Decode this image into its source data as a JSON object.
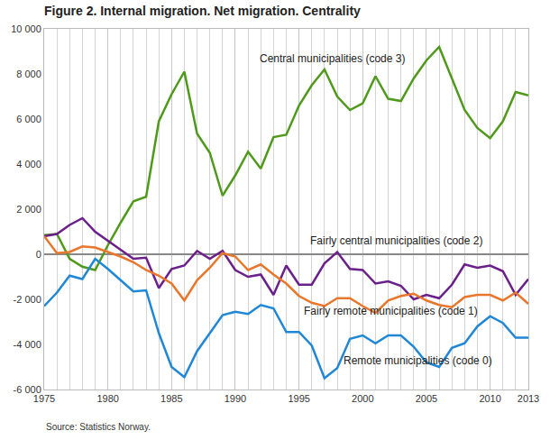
{
  "chart_data": {
    "type": "line",
    "title": "Figure 2. Internal migration. Net migration. Centrality",
    "source": "Source: Statistics Norway.",
    "x": [
      1975,
      1976,
      1977,
      1978,
      1979,
      1980,
      1981,
      1982,
      1983,
      1984,
      1985,
      1986,
      1987,
      1988,
      1989,
      1990,
      1991,
      1992,
      1993,
      1994,
      1995,
      1996,
      1997,
      1998,
      1999,
      2000,
      2001,
      2002,
      2003,
      2004,
      2005,
      2006,
      2007,
      2008,
      2009,
      2010,
      2011,
      2012,
      2013
    ],
    "series": [
      {
        "name": "Central municipalities (code 3)",
        "color": "#4f9a1b",
        "values": [
          850,
          900,
          -200,
          -550,
          -700,
          400,
          1400,
          2350,
          2550,
          5900,
          7100,
          8100,
          5350,
          4500,
          2600,
          3500,
          4550,
          3800,
          5200,
          5300,
          6600,
          7500,
          8200,
          7000,
          6400,
          6700,
          7900,
          6900,
          6800,
          7800,
          8600,
          9200,
          7800,
          6400,
          5600,
          5150,
          5900,
          7200,
          7050
        ]
      },
      {
        "name": "Fairly central municipalities (code 2)",
        "color": "#6a1f8a",
        "values": [
          800,
          900,
          1300,
          1600,
          1000,
          600,
          200,
          -200,
          -150,
          -1500,
          -650,
          -500,
          150,
          -200,
          150,
          -700,
          -1000,
          -900,
          -1800,
          -500,
          -1350,
          -1350,
          -400,
          100,
          -650,
          -700,
          -1300,
          -1200,
          -1400,
          -2000,
          -1800,
          -1950,
          -1350,
          -450,
          -600,
          -500,
          -750,
          -1800,
          -1100
        ]
      },
      {
        "name": "Fairly remote municipalities (code 1)",
        "color": "#e8762b",
        "values": [
          800,
          50,
          100,
          350,
          300,
          100,
          -100,
          -350,
          -700,
          -950,
          -1300,
          -2050,
          -1150,
          -600,
          50,
          -100,
          -700,
          -450,
          -900,
          -1300,
          -1850,
          -2150,
          -2300,
          -1950,
          -1950,
          -2300,
          -2600,
          -2050,
          -1850,
          -1750,
          -2050,
          -2250,
          -2350,
          -1900,
          -1800,
          -1800,
          -2050,
          -1700,
          -2200
        ]
      },
      {
        "name": "Remote municipalities (code 0)",
        "color": "#1f87d6",
        "values": [
          -2300,
          -1700,
          -950,
          -1100,
          -200,
          -650,
          -1150,
          -1650,
          -1600,
          -3500,
          -5000,
          -5450,
          -4300,
          -3500,
          -2700,
          -2550,
          -2650,
          -2250,
          -2400,
          -3450,
          -3450,
          -4050,
          -5500,
          -5050,
          -3750,
          -3600,
          -3950,
          -3600,
          -3600,
          -4100,
          -4800,
          -5000,
          -4150,
          -3950,
          -3200,
          -2750,
          -3050,
          -3700,
          -3700
        ]
      }
    ],
    "annotations": [
      {
        "text": "Central municipalities (code 3)",
        "x": 1997.6,
        "y": 8700
      },
      {
        "text": "Fairly central municipalities (code 2)",
        "x": 2002.6,
        "y": 600
      },
      {
        "text": "Fairly remote municipalities (code 1)",
        "x": 2002.2,
        "y": -2500
      },
      {
        "text": "Remote municipalities (code 0)",
        "x": 2004.3,
        "y": -4700
      }
    ],
    "xlim": [
      1975,
      2013
    ],
    "xticks": [
      1975,
      1980,
      1985,
      1990,
      1995,
      2000,
      2005,
      2010,
      2013
    ],
    "ylim": [
      -6000,
      10000
    ],
    "yticks": [
      {
        "value": -6000,
        "label": "-6 000"
      },
      {
        "value": -4000,
        "label": "-4 000"
      },
      {
        "value": -2000,
        "label": "-2 000"
      },
      0,
      {
        "value": 2000,
        "label": "2 000"
      },
      {
        "value": 4000,
        "label": "4 000"
      },
      {
        "value": 6000,
        "label": "6 000"
      },
      {
        "value": 8000,
        "label": "8 000"
      },
      {
        "value": 10000,
        "label": "10 000"
      }
    ],
    "grid": true
  }
}
